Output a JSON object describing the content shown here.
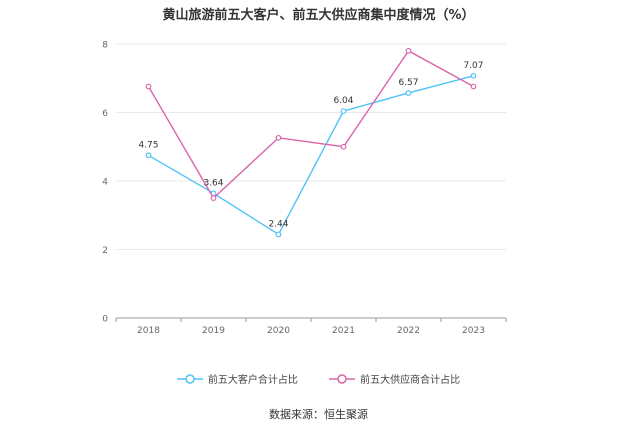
{
  "chart_data": {
    "type": "line",
    "title": "黄山旅游前五大客户、前五大供应商集中度情况（%）",
    "categories": [
      "2018",
      "2019",
      "2020",
      "2021",
      "2022",
      "2023"
    ],
    "ylim": [
      0,
      8
    ],
    "yticks": [
      "0",
      "2",
      "4",
      "6",
      "8"
    ],
    "grid": true,
    "legend_position": "bottom",
    "series": [
      {
        "name": "前五大客户合计占比",
        "color": "#4fc3f7",
        "values": [
          4.75,
          3.64,
          2.44,
          6.04,
          6.57,
          7.07
        ],
        "labels": [
          "4.75",
          "3.64",
          "2.44",
          "6.04",
          "6.57",
          "7.07"
        ]
      },
      {
        "name": "前五大供应商合计占比",
        "color": "#d966aa",
        "values": [
          6.76,
          3.5,
          5.26,
          5.0,
          7.8,
          6.76
        ]
      }
    ]
  },
  "source": "数据来源：恒生聚源"
}
